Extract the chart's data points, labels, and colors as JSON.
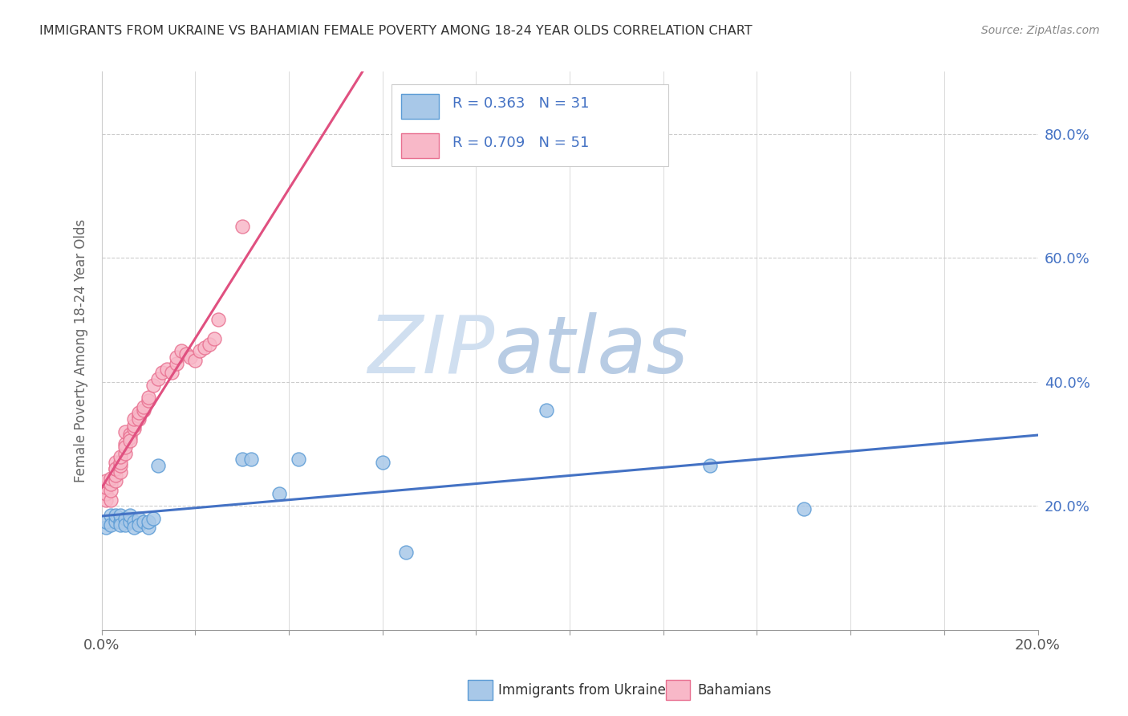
{
  "title": "IMMIGRANTS FROM UKRAINE VS BAHAMIAN FEMALE POVERTY AMONG 18-24 YEAR OLDS CORRELATION CHART",
  "source": "Source: ZipAtlas.com",
  "ylabel": "Female Poverty Among 18-24 Year Olds",
  "xlim": [
    0.0,
    0.2
  ],
  "ylim": [
    0.0,
    0.9
  ],
  "xticks": [
    0.0,
    0.02,
    0.04,
    0.06,
    0.08,
    0.1,
    0.12,
    0.14,
    0.16,
    0.18,
    0.2
  ],
  "yticks_right": [
    0.2,
    0.4,
    0.6,
    0.8
  ],
  "ytick_right_labels": [
    "20.0%",
    "40.0%",
    "60.0%",
    "80.0%"
  ],
  "legend_r1": "R = 0.363",
  "legend_n1": "N = 31",
  "legend_r2": "R = 0.709",
  "legend_n2": "N = 51",
  "color_ukraine_fill": "#a8c8e8",
  "color_ukraine_edge": "#5b9bd5",
  "color_bahamian_fill": "#f8b8c8",
  "color_bahamian_edge": "#e87090",
  "color_ukraine_line": "#4472c4",
  "color_bahamian_line": "#e05080",
  "watermark_color": "#d0dff0",
  "ukraine_x": [
    0.001,
    0.001,
    0.002,
    0.002,
    0.003,
    0.003,
    0.004,
    0.004,
    0.004,
    0.005,
    0.005,
    0.006,
    0.006,
    0.007,
    0.007,
    0.008,
    0.008,
    0.009,
    0.01,
    0.01,
    0.011,
    0.012,
    0.03,
    0.032,
    0.038,
    0.042,
    0.06,
    0.065,
    0.095,
    0.13,
    0.15
  ],
  "ukraine_y": [
    0.165,
    0.175,
    0.185,
    0.17,
    0.175,
    0.185,
    0.175,
    0.185,
    0.17,
    0.18,
    0.17,
    0.175,
    0.185,
    0.175,
    0.165,
    0.18,
    0.17,
    0.175,
    0.165,
    0.175,
    0.18,
    0.265,
    0.275,
    0.275,
    0.22,
    0.275,
    0.27,
    0.125,
    0.355,
    0.265,
    0.195
  ],
  "bahamian_x": [
    0.001,
    0.001,
    0.001,
    0.001,
    0.002,
    0.002,
    0.002,
    0.002,
    0.003,
    0.003,
    0.003,
    0.003,
    0.003,
    0.004,
    0.004,
    0.004,
    0.004,
    0.005,
    0.005,
    0.005,
    0.005,
    0.006,
    0.006,
    0.006,
    0.007,
    0.007,
    0.007,
    0.008,
    0.008,
    0.008,
    0.009,
    0.009,
    0.01,
    0.01,
    0.011,
    0.012,
    0.013,
    0.014,
    0.015,
    0.016,
    0.016,
    0.017,
    0.018,
    0.019,
    0.02,
    0.021,
    0.022,
    0.023,
    0.024,
    0.025,
    0.03
  ],
  "bahamian_y": [
    0.21,
    0.22,
    0.23,
    0.24,
    0.21,
    0.225,
    0.235,
    0.245,
    0.24,
    0.25,
    0.26,
    0.27,
    0.26,
    0.255,
    0.265,
    0.27,
    0.28,
    0.285,
    0.3,
    0.295,
    0.32,
    0.315,
    0.31,
    0.305,
    0.325,
    0.33,
    0.34,
    0.345,
    0.34,
    0.35,
    0.355,
    0.36,
    0.37,
    0.375,
    0.395,
    0.405,
    0.415,
    0.42,
    0.415,
    0.43,
    0.44,
    0.45,
    0.445,
    0.44,
    0.435,
    0.45,
    0.455,
    0.46,
    0.47,
    0.5,
    0.65
  ],
  "background_color": "#ffffff",
  "grid_color": "#cccccc"
}
